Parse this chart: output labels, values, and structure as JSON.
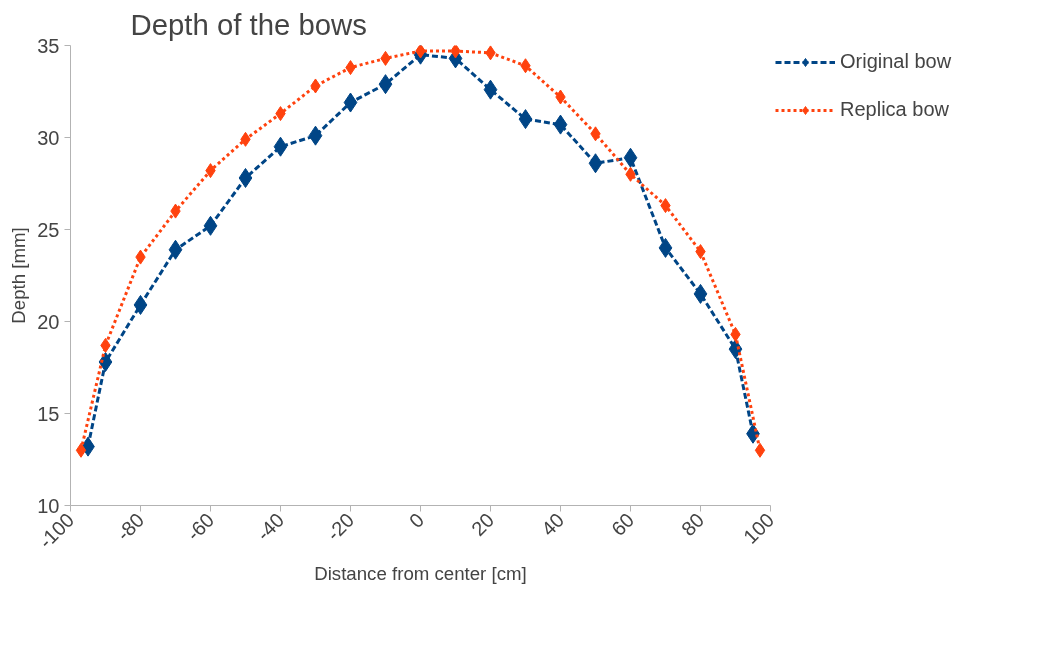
{
  "chart_data": {
    "type": "line",
    "title": "Depth of the bows",
    "xlabel": "Distance from center [cm]",
    "ylabel": "Depth [mm]",
    "xlim": [
      -100,
      100
    ],
    "xticks": [
      -100,
      -80,
      -60,
      -40,
      -20,
      0,
      20,
      40,
      60,
      80,
      100
    ],
    "ylim": [
      10,
      35
    ],
    "yticks": [
      10,
      15,
      20,
      25,
      30,
      35
    ],
    "grid": false,
    "legend": "top right",
    "marker": "diamond",
    "series": [
      {
        "name": "Original bow",
        "color": "#004586",
        "line_style": "dashed",
        "x": [
          -95,
          -90,
          -80,
          -70,
          -60,
          -50,
          -40,
          -30,
          -20,
          -10,
          0,
          10,
          20,
          30,
          40,
          50,
          60,
          70,
          80,
          90,
          95
        ],
        "values": [
          13.2,
          17.8,
          20.9,
          23.9,
          25.2,
          27.8,
          29.5,
          30.1,
          31.9,
          32.9,
          34.5,
          34.3,
          32.6,
          31.0,
          30.7,
          28.6,
          28.9,
          24.0,
          21.5,
          18.5,
          13.9
        ]
      },
      {
        "name": "Replica bow",
        "color": "#ff420e",
        "line_style": "dotted",
        "x": [
          -97,
          -90,
          -80,
          -70,
          -60,
          -50,
          -40,
          -30,
          -20,
          -10,
          0,
          10,
          20,
          30,
          40,
          50,
          60,
          70,
          80,
          90,
          97
        ],
        "values": [
          13.0,
          18.7,
          23.5,
          26.0,
          28.2,
          29.9,
          31.3,
          32.8,
          33.8,
          34.3,
          34.7,
          34.7,
          34.6,
          33.9,
          32.2,
          30.2,
          28.0,
          26.3,
          23.8,
          19.3,
          13.0
        ]
      }
    ]
  }
}
